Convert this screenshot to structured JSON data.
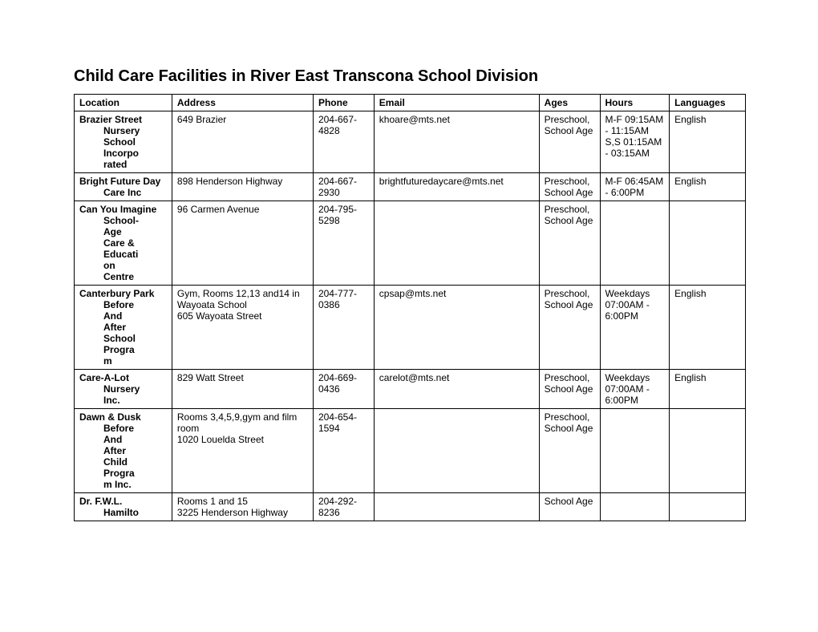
{
  "title": "Child Care Facilities in River East Transcona School Division",
  "columns": [
    "Location",
    "Address",
    "Phone",
    "Email",
    "Ages",
    "Hours",
    "Languages"
  ],
  "rows": [
    {
      "loc_first": "Brazier Street",
      "loc_rest": "Nursery School Incorporated",
      "address": "649 Brazier",
      "phone": "204-667-4828",
      "email": "khoare@mts.net",
      "ages": "Preschool, School Age",
      "hours": "M-F 09:15AM - 11:15AM S,S 01:15AM - 03:15AM",
      "languages": "English"
    },
    {
      "loc_first": "Bright Future Day",
      "loc_rest": "Care Inc",
      "address": "898 Henderson Highway",
      "phone": "204-667-2930",
      "email": "brightfuturedaycare@mts.net",
      "ages": "Preschool, School Age",
      "hours": "M-F 06:45AM - 6:00PM",
      "languages": "English"
    },
    {
      "loc_first": "Can You Imagine",
      "loc_rest": "School-Age Care & Education Centre",
      "address": "96 Carmen Avenue",
      "phone": "204-795-5298",
      "email": "",
      "ages": "Preschool, School Age",
      "hours": "",
      "languages": ""
    },
    {
      "loc_first": "Canterbury Park",
      "loc_rest": "Before And After School Program",
      "address": "Gym, Rooms 12,13 and14 in Wayoata School\n605 Wayoata Street",
      "phone": "204-777-0386",
      "email": "cpsap@mts.net",
      "ages": "Preschool, School Age",
      "hours": "Weekdays 07:00AM - 6:00PM",
      "languages": "English"
    },
    {
      "loc_first": "Care-A-Lot",
      "loc_rest": "Nursery Inc.",
      "address": "829 Watt Street",
      "phone": "204-669-0436",
      "email": "carelot@mts.net",
      "ages": "Preschool, School Age",
      "hours": "Weekdays 07:00AM - 6:00PM",
      "languages": "English"
    },
    {
      "loc_first": "Dawn & Dusk",
      "loc_rest": "Before And After Child Program Inc.",
      "address": "Rooms 3,4,5,9,gym and film room\n1020 Louelda Street",
      "phone": "204-654-1594",
      "email": "",
      "ages": "Preschool, School Age",
      "hours": "",
      "languages": ""
    },
    {
      "loc_first": "Dr. F.W.L.",
      "loc_rest": "Hamilto",
      "address": "Rooms 1 and 15\n3225 Henderson Highway",
      "phone": "204-292-8236",
      "email": "",
      "ages": "School Age",
      "hours": "",
      "languages": ""
    }
  ]
}
